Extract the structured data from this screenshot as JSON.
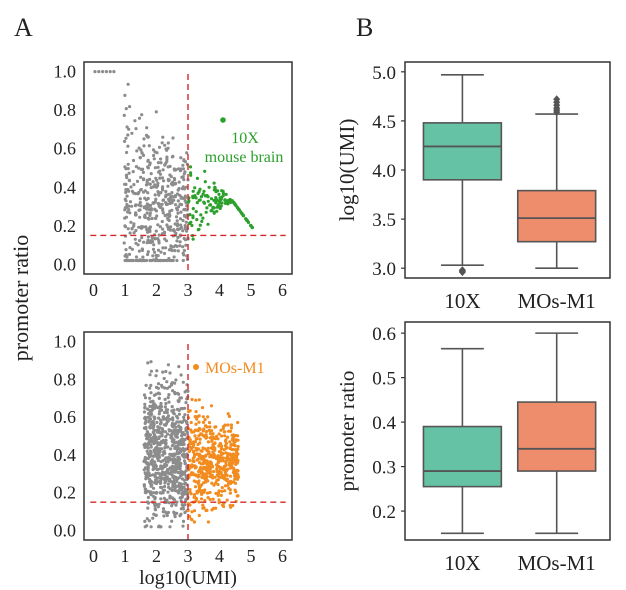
{
  "panel_labels": {
    "a": "A",
    "b": "B"
  },
  "colors": {
    "gray": "#8c8c8c",
    "green": "#2ca02c",
    "orange": "#f28c1f",
    "teal": "#66c2a5",
    "salmon": "#ee8d6b",
    "red": "#d62728",
    "axis": "#333333",
    "whisker": "#555555"
  },
  "chart_data": [
    {
      "id": "scatter_10x",
      "type": "scatter",
      "title": "",
      "xlabel": "",
      "ylabel": "promoter  ratio",
      "xlim": [
        -0.3,
        6.3
      ],
      "ylim": [
        -0.05,
        1.05
      ],
      "xticks": [
        0,
        1,
        2,
        3,
        4,
        5,
        6
      ],
      "yticks": [
        0.0,
        0.2,
        0.4,
        0.6,
        0.8,
        1.0
      ],
      "threshold_x": 3.0,
      "threshold_y": 0.15,
      "annotation": [
        "10X",
        "mouse brain"
      ],
      "series": [
        {
          "name": "",
          "color_key": "gray",
          "cloud": {
            "x_range": [
              0.95,
              3.0
            ],
            "y_center": 0.28,
            "count": 520,
            "seed": 11
          }
        },
        {
          "name": "10X mouse brain",
          "color_key": "green",
          "cloud": {
            "x_range": [
              3.0,
              5.05
            ],
            "y_center": 0.33,
            "count": 150,
            "seed": 23
          }
        }
      ]
    },
    {
      "id": "scatter_mos",
      "type": "scatter",
      "title": "",
      "xlabel": "log10(UMI)",
      "ylabel": "",
      "xlim": [
        -0.3,
        6.3
      ],
      "ylim": [
        -0.05,
        1.05
      ],
      "xticks": [
        0,
        1,
        2,
        3,
        4,
        5,
        6
      ],
      "yticks": [
        0.0,
        0.2,
        0.4,
        0.6,
        0.8,
        1.0
      ],
      "threshold_x": 3.0,
      "threshold_y": 0.15,
      "annotation": [
        "MOs-M1"
      ],
      "series": [
        {
          "name": "",
          "color_key": "gray",
          "cloud": {
            "x_range": [
              1.6,
              3.0
            ],
            "y_center": 0.42,
            "count": 750,
            "seed": 37
          }
        },
        {
          "name": "MOs-M1",
          "color_key": "orange",
          "cloud": {
            "x_range": [
              3.0,
              4.6
            ],
            "y_center": 0.36,
            "count": 520,
            "seed": 41
          }
        }
      ]
    },
    {
      "id": "box_umi",
      "type": "box",
      "title": "",
      "xlabel": "",
      "ylabel": "log10(UMI)",
      "ylim": [
        2.9,
        5.1
      ],
      "yticks": [
        "3.0",
        "3.5",
        "4.0",
        "4.5",
        "5.0"
      ],
      "categories": [
        "10X",
        "MOs-M1"
      ],
      "boxes": [
        {
          "q1": 3.9,
          "median": 4.24,
          "q3": 4.48,
          "whisker_low": 3.03,
          "whisker_high": 4.97,
          "outliers": [
            2.96,
            2.97,
            2.98
          ],
          "color_key": "teal"
        },
        {
          "q1": 3.27,
          "median": 3.51,
          "q3": 3.79,
          "whisker_low": 3.0,
          "whisker_high": 4.57,
          "outliers": [
            4.59,
            4.61,
            4.63,
            4.66,
            4.69,
            4.72
          ],
          "color_key": "salmon"
        }
      ]
    },
    {
      "id": "box_promoter",
      "type": "box",
      "title": "",
      "xlabel": "",
      "ylabel": "promoter ratio",
      "ylim": [
        0.135,
        0.625
      ],
      "yticks": [
        "0.2",
        "0.3",
        "0.4",
        "0.5",
        "0.6"
      ],
      "categories": [
        "10X",
        "MOs-M1"
      ],
      "boxes": [
        {
          "q1": 0.255,
          "median": 0.29,
          "q3": 0.39,
          "whisker_low": 0.15,
          "whisker_high": 0.565,
          "outliers": [],
          "color_key": "teal"
        },
        {
          "q1": 0.29,
          "median": 0.34,
          "q3": 0.445,
          "whisker_low": 0.15,
          "whisker_high": 0.6,
          "outliers": [],
          "color_key": "salmon"
        }
      ]
    }
  ]
}
